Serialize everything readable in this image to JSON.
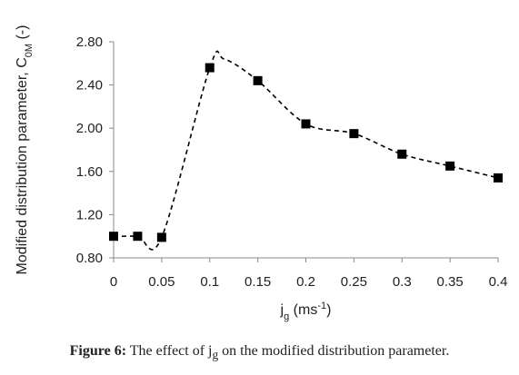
{
  "chart_data": {
    "type": "scatter",
    "title": "",
    "xlabel": {
      "base": "j",
      "sub": "g",
      "rest": " (ms",
      "sup": "-1",
      "end": ")"
    },
    "ylabel": {
      "base": "Modified distribution parameter, C",
      "sub": "0M",
      "rest": " (-)"
    },
    "xlim": [
      0,
      0.4
    ],
    "ylim": [
      0.8,
      2.8
    ],
    "xticks": [
      "0",
      "0.05",
      "0.1",
      "0.15",
      "0.2",
      "0.25",
      "0.3",
      "0.35",
      "0.4"
    ],
    "yticks": [
      "0.80",
      "1.20",
      "1.60",
      "2.00",
      "2.40",
      "2.80"
    ],
    "grid": false,
    "series": [
      {
        "marker": "square",
        "color": "#000000",
        "x": [
          0,
          0.025,
          0.05,
          0.1,
          0.15,
          0.2,
          0.25,
          0.3,
          0.35,
          0.4
        ],
        "y": [
          1.0,
          1.0,
          0.99,
          2.56,
          2.44,
          2.04,
          1.95,
          1.76,
          1.65,
          1.54
        ]
      }
    ],
    "trend_line": {
      "style": "dashed",
      "color": "#000000",
      "x": [
        0,
        0.025,
        0.05,
        0.1,
        0.115,
        0.15,
        0.2,
        0.25,
        0.3,
        0.35,
        0.4
      ],
      "y": [
        1.0,
        1.0,
        0.99,
        2.56,
        2.64,
        2.44,
        2.04,
        1.95,
        1.76,
        1.65,
        1.54
      ]
    }
  },
  "caption": {
    "label": "Figure 6:",
    "pre": " The effect of j",
    "sub": "g",
    "post": " on the modified distribution parameter."
  }
}
